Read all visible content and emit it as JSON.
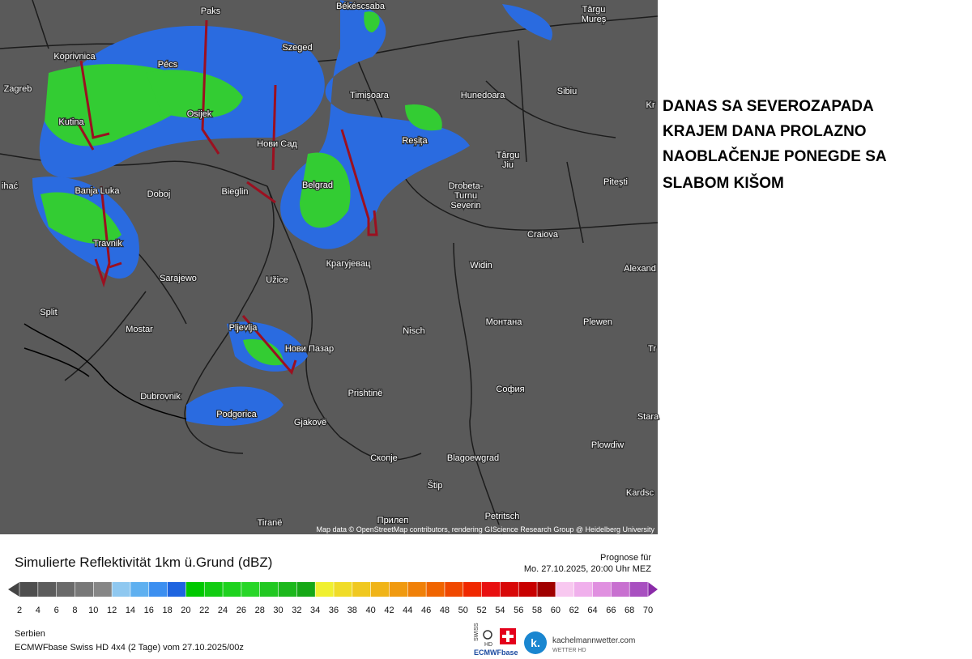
{
  "map": {
    "cities": [
      "Paks",
      "Békéscsaba",
      "Târgu",
      "Mureș",
      "Koprivnica",
      "Pécs",
      "Szeged",
      "Zagreb",
      "Timișoara",
      "Hunedoara",
      "Sibiu",
      "Kr",
      "Kutina",
      "Osijek",
      "Нови Сад",
      "Reșița",
      "Târgu",
      "Jiu",
      "Pitești",
      "ihać",
      "Banja Luka",
      "Doboj",
      "Bieglin",
      "Belgrad",
      "Drobeta-",
      "Turnu",
      "Severin",
      "Craiova",
      "Travnik",
      "Крагујевац",
      "Widin",
      "Alexand",
      "Sarajewo",
      "Užice",
      "Split",
      "Монтана",
      "Plewen",
      "Mostar",
      "Pljevlja",
      "Nisch",
      "Нови Пазар",
      "Tr",
      "Prishtinë",
      "София",
      "Dubrovnik",
      "Stara",
      "Podgorica",
      "Gjakovë",
      "Plowdiw",
      "Скопје",
      "Blagoewgrad",
      "Štip",
      "Kardsc",
      "Petritsch",
      "Tiranë",
      "Прилеп"
    ],
    "attribution": "Map data © OpenStreetMap contributors, rendering GIScience Research Group @ Heidelberg University"
  },
  "annotation": [
    "DANAS SA SEVEROZAPADA",
    "KRAJEM DANA PROLAZNO",
    "NAOBLAČENJE PONEGDE SA",
    "SLABOM KIŠOM"
  ],
  "legend": {
    "title": "Simulierte Reflektivität 1km ü.Grund (dBZ)",
    "forecast_label": "Prognose für",
    "forecast_time": "Mo. 27.10.2025, 20:00 Uhr MEZ",
    "ticks": [
      2,
      4,
      6,
      8,
      10,
      12,
      14,
      16,
      18,
      20,
      22,
      24,
      26,
      28,
      30,
      32,
      34,
      36,
      38,
      40,
      42,
      44,
      46,
      48,
      50,
      52,
      54,
      56,
      58,
      60,
      62,
      64,
      66,
      68,
      70
    ]
  },
  "footer": {
    "region": "Serbien",
    "model": "ECMWFbase Swiss HD 4x4 (2 Tage) vom 27.10.2025/00z",
    "swiss_top": "SWISS",
    "swiss_hd": "HD",
    "swiss_base": "ECMWFbase",
    "logo_letter": "k.",
    "logo_text": "kachelmannwetter.com",
    "logo_sub": "WETTER HD"
  }
}
